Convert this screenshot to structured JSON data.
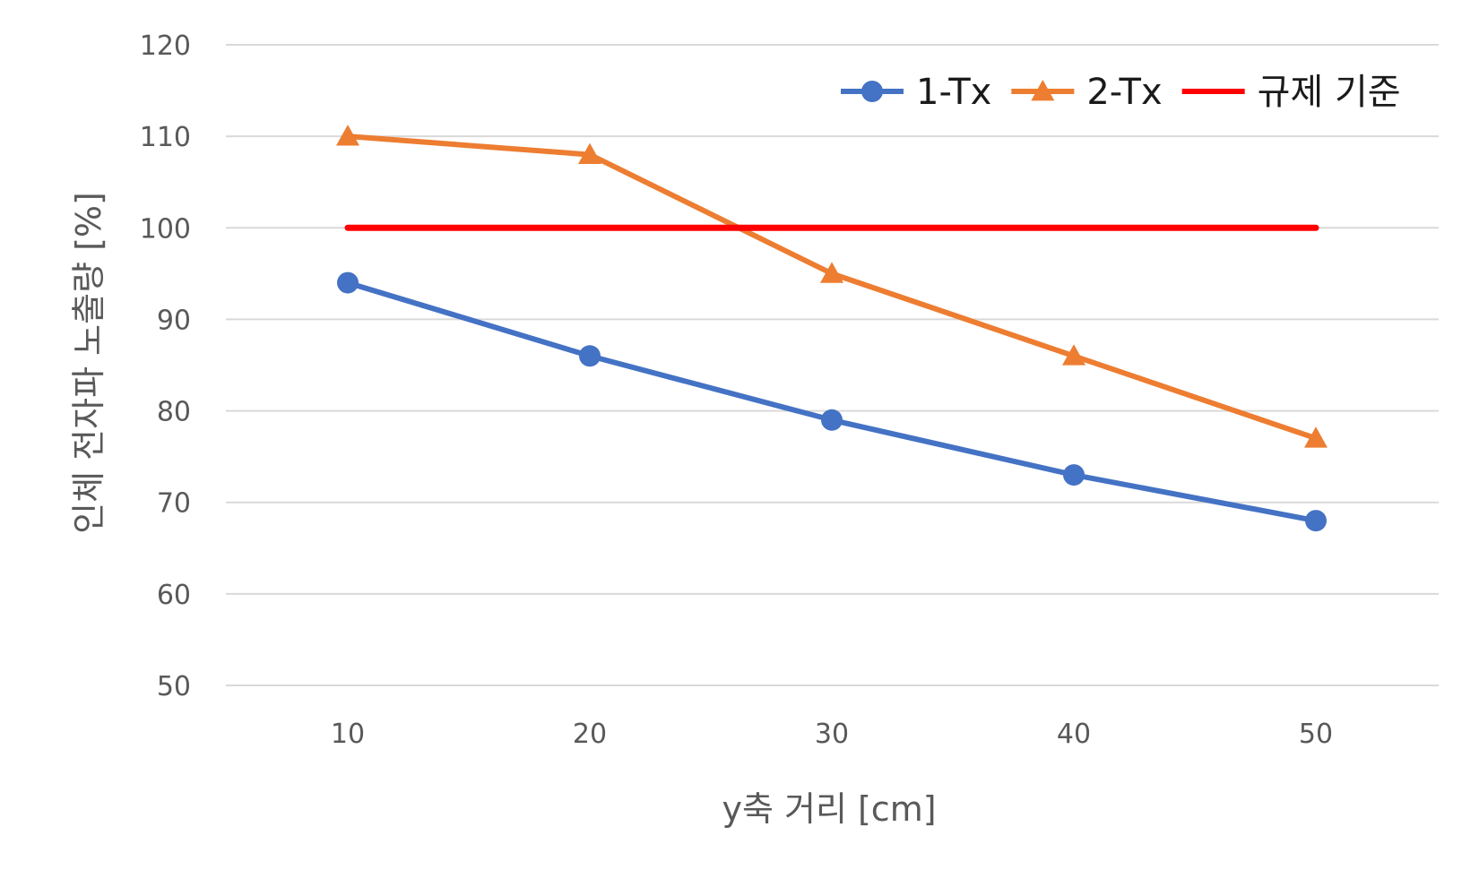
{
  "chart_data": {
    "type": "line",
    "title": "",
    "xlabel": "y축 거리 [cm]",
    "ylabel": "인체 전자파 노출량 [%]",
    "x": [
      10,
      20,
      30,
      40,
      50
    ],
    "ylim": [
      50,
      120
    ],
    "yticks": [
      50,
      60,
      70,
      80,
      90,
      100,
      110,
      120
    ],
    "grid": true,
    "legend_position": "top-right",
    "series": [
      {
        "name": "1-Tx",
        "values": [
          94,
          86,
          79,
          73,
          68
        ],
        "color": "#4472C4",
        "marker": "circle"
      },
      {
        "name": "2-Tx",
        "values": [
          110,
          108,
          95,
          86,
          77
        ],
        "color": "#ED7D31",
        "marker": "triangle"
      },
      {
        "name": "규제 기준",
        "values": [
          100,
          100,
          100,
          100,
          100
        ],
        "color": "#FF0000",
        "marker": "none"
      }
    ]
  }
}
